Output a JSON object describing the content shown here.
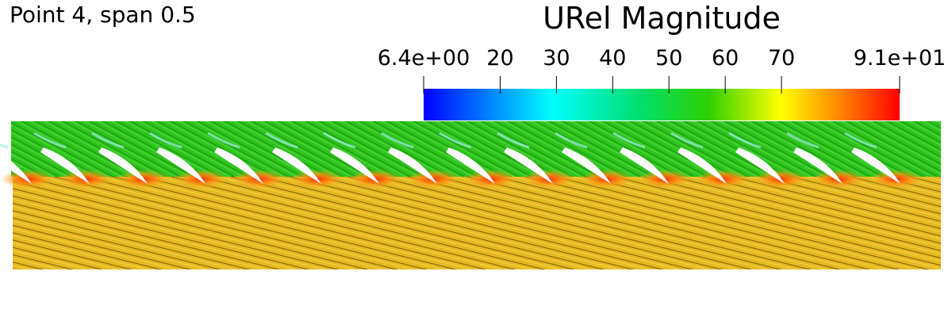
{
  "header": {
    "title": "Point 4, span 0.5"
  },
  "colorbar": {
    "title": "URel Magnitude",
    "range": [
      6.4,
      91
    ],
    "ticks": [
      {
        "value": 6.4,
        "label": "6.4e+00"
      },
      20,
      30,
      40,
      50,
      60,
      70,
      {
        "value": 91,
        "label": "9.1e+01"
      }
    ]
  }
}
